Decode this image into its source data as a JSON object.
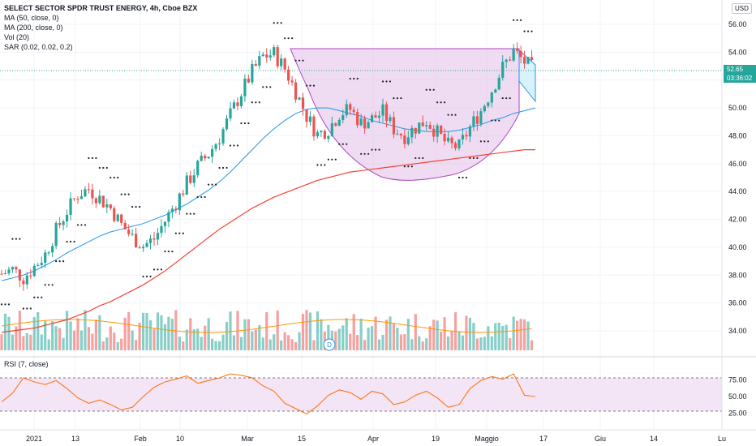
{
  "legend": {
    "title": "SELECT SECTOR SPDR TRUST ENERGY, 4h, Cboe BZX",
    "ma50": "MA (50, close, 0)",
    "ma200": "MA (200, close, 0)",
    "vol": "Vol (20)",
    "sar": "SAR (0.02, 0.02, 0.2)"
  },
  "rsi_label": "RSI (7, close)",
  "currency": "USD",
  "last_price": "52.65",
  "countdown": "03:36:02",
  "dividend_marker": "D",
  "colors": {
    "up": "#26a69a",
    "down": "#ef5350",
    "ma50": "#2196f3",
    "ma200": "#f44336",
    "sar": "#1e222d",
    "cup_fill": "#e1bee7",
    "rsi_line": "#ff6d00",
    "rsi_band": "#f3e5f5"
  },
  "chart_data": {
    "type": "candlestick",
    "y_ticks": [
      "56.00",
      "54.00",
      "52.00",
      "50.00",
      "48.00",
      "46.00",
      "44.00",
      "42.00",
      "40.00",
      "38.00",
      "36.00",
      "34.00"
    ],
    "ylim": [
      32.5,
      57.0
    ],
    "x_ticks": [
      "2021",
      "13",
      "Feb",
      "10",
      "Mar",
      "15",
      "Apr",
      "19",
      "Maggio",
      "17",
      "Giu",
      "14",
      "Lu"
    ],
    "rsi_ticks": [
      "75.00",
      "50.00",
      "25.00"
    ],
    "rsi_levels": [
      70,
      30
    ],
    "last_price": 52.65,
    "close_series": [
      38.1,
      38.4,
      37.8,
      38.6,
      39.5,
      41.2,
      42.6,
      43.8,
      44.2,
      43.5,
      42.8,
      41.6,
      40.7,
      40.1,
      40.6,
      41.9,
      43.2,
      44.6,
      45.8,
      46.7,
      47.9,
      49.5,
      51.1,
      52.6,
      53.7,
      53.9,
      52.8,
      51.2,
      49.4,
      48.1,
      48.5,
      49.6,
      49.9,
      48.9,
      49.2,
      49.7,
      48.5,
      48.0,
      48.6,
      49.1,
      48.2,
      47.3,
      47.2,
      48.6,
      49.8,
      51.3,
      52.9,
      54.1,
      53.3,
      52.65
    ],
    "ma50_series": [
      37.6,
      37.8,
      38.0,
      38.3,
      38.7,
      39.1,
      39.6,
      40.0,
      40.4,
      40.8,
      41.1,
      41.3,
      41.5,
      41.7,
      42.0,
      42.3,
      42.7,
      43.1,
      43.6,
      44.1,
      44.7,
      45.4,
      46.2,
      47.0,
      47.8,
      48.5,
      49.1,
      49.6,
      49.9,
      50.0,
      50.0,
      49.8,
      49.6,
      49.4,
      49.1,
      48.9,
      48.7,
      48.5,
      48.4,
      48.3,
      48.3,
      48.3,
      48.4,
      48.6,
      48.8,
      49.1,
      49.3,
      49.6,
      49.8,
      50.0
    ],
    "ma200_series": [
      33.9,
      34.0,
      34.1,
      34.2,
      34.4,
      34.6,
      34.8,
      35.1,
      35.4,
      35.8,
      36.1,
      36.5,
      36.9,
      37.3,
      37.8,
      38.3,
      38.9,
      39.5,
      40.1,
      40.7,
      41.3,
      41.8,
      42.3,
      42.8,
      43.2,
      43.6,
      43.9,
      44.2,
      44.5,
      44.8,
      45.0,
      45.2,
      45.4,
      45.5,
      45.6,
      45.7,
      45.8,
      45.9,
      46.0,
      46.1,
      46.2,
      46.3,
      46.4,
      46.5,
      46.6,
      46.7,
      46.8,
      46.9,
      47.0,
      47.0
    ],
    "rsi_series": [
      42,
      55,
      78,
      72,
      68,
      74,
      62,
      48,
      40,
      45,
      38,
      30,
      34,
      50,
      64,
      72,
      76,
      81,
      70,
      74,
      78,
      84,
      82,
      78,
      66,
      58,
      40,
      32,
      24,
      36,
      52,
      60,
      56,
      46,
      58,
      54,
      38,
      42,
      52,
      58,
      48,
      34,
      38,
      62,
      74,
      80,
      76,
      84,
      52,
      50
    ]
  }
}
